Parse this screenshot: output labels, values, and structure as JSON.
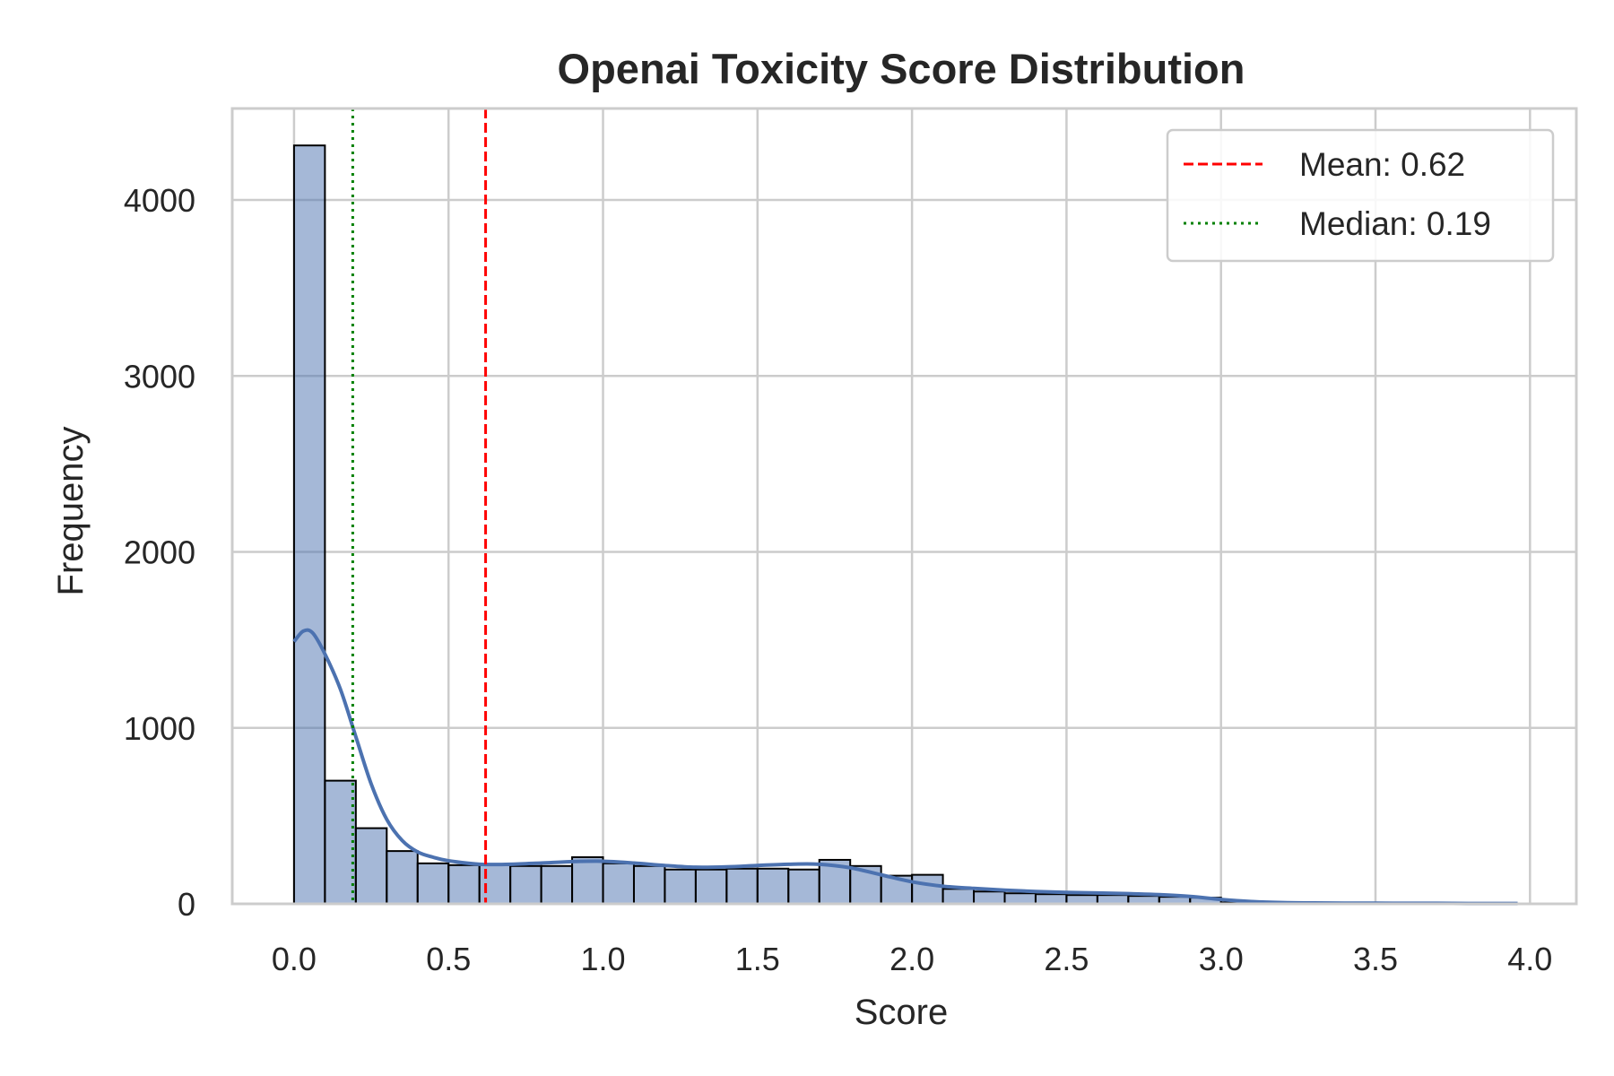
{
  "chart_data": {
    "type": "bar",
    "title": "Openai Toxicity Score Distribution",
    "xlabel": "Score",
    "ylabel": "Frequency",
    "xlim": [
      -0.2,
      4.15
    ],
    "ylim": [
      0,
      4520
    ],
    "xticks": [
      0.0,
      0.5,
      1.0,
      1.5,
      2.0,
      2.5,
      3.0,
      3.5,
      4.0
    ],
    "xtick_labels": [
      "0.0",
      "0.5",
      "1.0",
      "1.5",
      "2.0",
      "2.5",
      "3.0",
      "3.5",
      "4.0"
    ],
    "yticks": [
      0,
      1000,
      2000,
      3000,
      4000
    ],
    "ytick_labels": [
      "0",
      "1000",
      "2000",
      "3000",
      "4000"
    ],
    "grid": true,
    "bin_edges": [
      0.0,
      0.1,
      0.2,
      0.3,
      0.4,
      0.5,
      0.6,
      0.7,
      0.8,
      0.9,
      1.0,
      1.1,
      1.2,
      1.3,
      1.4,
      1.5,
      1.6,
      1.7,
      1.8,
      1.9,
      2.0,
      2.1,
      2.2,
      2.3,
      2.4,
      2.5,
      2.6,
      2.7,
      2.8,
      2.9,
      3.0,
      3.1,
      3.2,
      3.3,
      3.4,
      3.5,
      3.6,
      3.7,
      3.8,
      3.9,
      4.0
    ],
    "counts": [
      4310,
      700,
      430,
      300,
      230,
      220,
      220,
      215,
      215,
      265,
      230,
      215,
      195,
      195,
      200,
      200,
      195,
      250,
      215,
      160,
      165,
      85,
      70,
      60,
      55,
      50,
      50,
      45,
      40,
      35,
      8,
      5,
      4,
      3,
      3,
      2,
      2,
      1,
      1,
      1
    ],
    "bar_color": "#4c72b0",
    "kde": {
      "x": [
        0.0,
        0.03,
        0.06,
        0.1,
        0.15,
        0.2,
        0.25,
        0.3,
        0.35,
        0.4,
        0.45,
        0.5,
        0.6,
        0.7,
        0.8,
        0.9,
        1.0,
        1.1,
        1.2,
        1.3,
        1.4,
        1.5,
        1.6,
        1.7,
        1.8,
        1.9,
        2.0,
        2.1,
        2.2,
        2.3,
        2.4,
        2.5,
        2.6,
        2.7,
        2.8,
        2.9,
        3.0,
        3.1,
        3.2,
        3.3,
        3.4,
        3.5,
        3.6,
        3.7,
        3.8,
        3.9,
        3.96
      ],
      "y": [
        1490,
        1550,
        1540,
        1420,
        1220,
        950,
        680,
        480,
        360,
        295,
        265,
        245,
        225,
        225,
        232,
        240,
        242,
        232,
        218,
        208,
        210,
        218,
        225,
        225,
        205,
        165,
        125,
        100,
        88,
        78,
        70,
        65,
        62,
        58,
        52,
        42,
        25,
        13,
        7,
        5,
        4,
        4,
        3,
        3,
        2,
        2,
        2
      ],
      "color": "#4c72b0"
    },
    "reference_lines": [
      {
        "name": "Mean: 0.62",
        "x": 0.62,
        "color": "#ff0000",
        "style": "dashed"
      },
      {
        "name": "Median: 0.19",
        "x": 0.19,
        "color": "#008000",
        "style": "dotted"
      }
    ],
    "legend_position": "top-right"
  }
}
